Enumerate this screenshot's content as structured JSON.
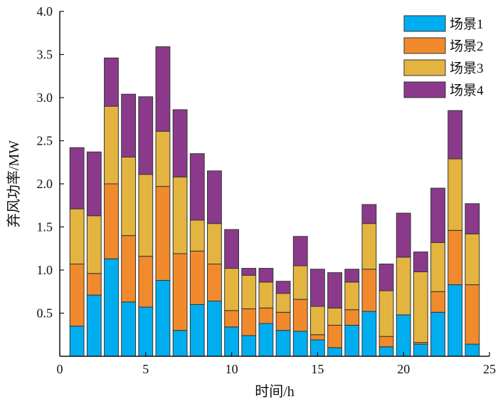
{
  "chart_data": {
    "type": "bar",
    "stacked": true,
    "xlabel": "时间/h",
    "ylabel": "弃风功率/MW",
    "xlim": [
      0,
      25
    ],
    "ylim": [
      0,
      4.0
    ],
    "x_ticks": [
      0,
      5,
      10,
      15,
      20,
      25
    ],
    "y_ticks": [
      0.5,
      1.0,
      1.5,
      2.0,
      2.5,
      3.0,
      3.5,
      4.0
    ],
    "x_tick_labels": [
      "0",
      "5",
      "10",
      "15",
      "20",
      "25"
    ],
    "y_tick_labels": [
      "0.5",
      "1.0",
      "1.5",
      "2.0",
      "2.5",
      "3.0",
      "3.5",
      "4.0"
    ],
    "grid": false,
    "legend_position": "top-right",
    "x": [
      1,
      2,
      3,
      4,
      5,
      6,
      7,
      8,
      9,
      10,
      11,
      12,
      13,
      14,
      15,
      16,
      17,
      18,
      19,
      20,
      21,
      22,
      23,
      24
    ],
    "series": [
      {
        "name": "场景1",
        "color": "#00AEEF",
        "values": [
          0.35,
          0.71,
          1.13,
          0.63,
          0.57,
          0.88,
          0.3,
          0.6,
          0.64,
          0.34,
          0.24,
          0.38,
          0.3,
          0.29,
          0.19,
          0.1,
          0.36,
          0.52,
          0.11,
          0.48,
          0.14,
          0.51,
          0.83,
          0.14
        ]
      },
      {
        "name": "场景2",
        "color": "#F18A2C",
        "values": [
          0.72,
          0.25,
          0.87,
          0.77,
          0.59,
          1.09,
          0.89,
          0.62,
          0.43,
          0.19,
          0.31,
          0.18,
          0.21,
          0.37,
          0.06,
          0.26,
          0.18,
          0.49,
          0.12,
          0.0,
          0.02,
          0.24,
          0.63,
          0.69
        ]
      },
      {
        "name": "场景3",
        "color": "#E3B440",
        "values": [
          0.64,
          0.67,
          0.9,
          0.91,
          0.95,
          0.64,
          0.89,
          0.36,
          0.47,
          0.49,
          0.39,
          0.3,
          0.22,
          0.39,
          0.33,
          0.2,
          0.32,
          0.53,
          0.53,
          0.67,
          0.82,
          0.57,
          0.83,
          0.59
        ]
      },
      {
        "name": "场景4",
        "color": "#8B3A8B",
        "values": [
          0.71,
          0.74,
          0.56,
          0.73,
          0.9,
          0.98,
          0.78,
          0.77,
          0.61,
          0.45,
          0.08,
          0.16,
          0.14,
          0.34,
          0.43,
          0.41,
          0.15,
          0.22,
          0.31,
          0.51,
          0.23,
          0.63,
          0.56,
          0.35
        ]
      }
    ]
  }
}
